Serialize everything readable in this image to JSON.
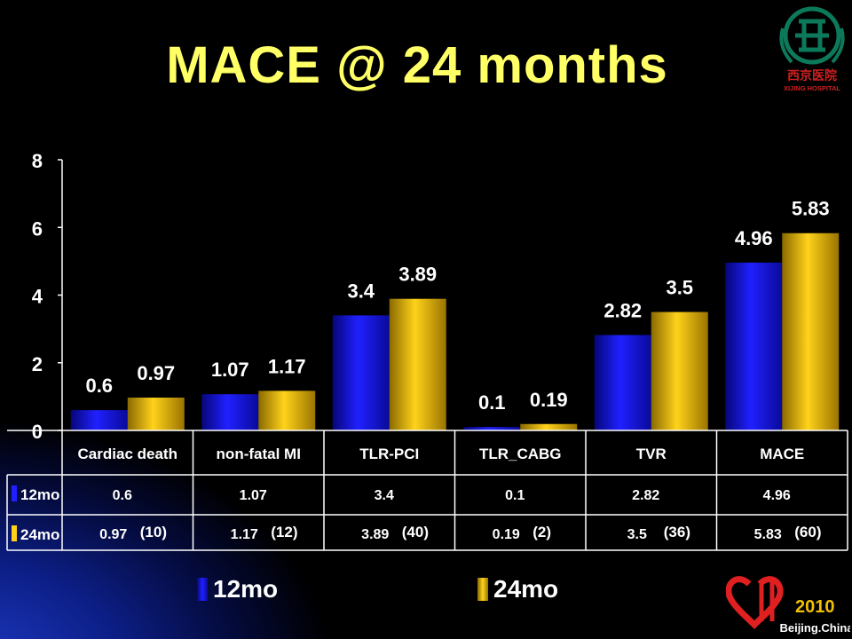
{
  "title": "MACE @ 24 months",
  "colors": {
    "series_12mo": "#1a1ad8",
    "series_24mo": "#d4a800",
    "title": "#ffff66",
    "background": "#000000"
  },
  "chart_data": {
    "type": "bar",
    "categories": [
      "Cardiac death",
      "non-fatal MI",
      "TLR-PCI",
      "TLR_CABG",
      "TVR",
      "MACE"
    ],
    "series": [
      {
        "name": "12mo",
        "values": [
          0.6,
          1.07,
          3.4,
          0.1,
          2.82,
          4.96
        ],
        "labels": [
          "0.6",
          "1.07",
          "3.4",
          "0.1",
          "2.82",
          "4.96"
        ]
      },
      {
        "name": "24mo",
        "values": [
          0.97,
          1.17,
          3.89,
          0.19,
          3.5,
          5.83
        ],
        "labels": [
          "0.97",
          "1.17",
          "3.89",
          "0.19",
          "3.5",
          "5.83"
        ]
      }
    ],
    "counts_24mo": [
      "(10)",
      "(12)",
      "(40)",
      "(2)",
      "(36)",
      "(60)"
    ],
    "yticks": [
      "0",
      "2",
      "4",
      "6",
      "8"
    ],
    "ylim": [
      0,
      8
    ],
    "grid": false,
    "legend": "bottom"
  },
  "logos": {
    "top_right_text": "西京医院",
    "top_right_subtext": "XIJING HOSPITAL",
    "bottom_right_year": "2010",
    "bottom_right_city": "Beijing.China"
  }
}
